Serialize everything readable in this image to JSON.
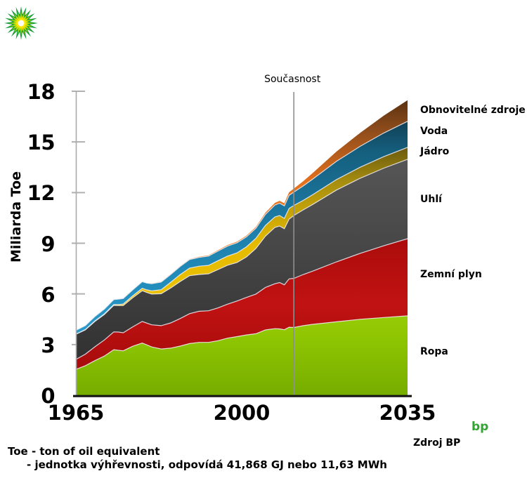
{
  "axis": {
    "y_title": "Miliarda Toe"
  },
  "present": {
    "label": "Současnost",
    "year": 2011
  },
  "footer": {
    "note_line1": "Toe - ton of oil equivalent",
    "note_line2": "- jednotka výhřevnosti, odpovídá 41,868 GJ nebo 11,63 MWh",
    "source_label": "Zdroj BP",
    "bp_wordmark": "bp"
  },
  "chart_data": {
    "type": "area",
    "stacked": true,
    "title": "",
    "xlabel": "",
    "ylabel": "Miliarda Toe",
    "xlim": [
      1965,
      2035
    ],
    "ylim": [
      0,
      18
    ],
    "yticks": [
      0,
      3,
      6,
      9,
      12,
      15,
      18
    ],
    "xticks": [
      1965,
      2000,
      2035
    ],
    "grid": false,
    "legend_position": "right-outside",
    "present_line": {
      "year": 2011,
      "label": "Současnost",
      "color": "#8f8f8f"
    },
    "axis_colors": {
      "y_axis": "#ababab",
      "tick": "#b0b0b0",
      "x_axis": "#151515"
    },
    "separator_color": "rgba(240,238,248,0.85)",
    "x": [
      1965,
      1967,
      1969,
      1971,
      1973,
      1974,
      1975,
      1977,
      1979,
      1980,
      1981,
      1983,
      1985,
      1987,
      1989,
      1991,
      1993,
      1995,
      1997,
      1999,
      2001,
      2003,
      2005,
      2007,
      2008,
      2009,
      2010,
      2011,
      2013,
      2015,
      2020,
      2025,
      2030,
      2035
    ],
    "series": [
      {
        "name": "Ropa",
        "values": [
          1.53,
          1.75,
          2.05,
          2.32,
          2.7,
          2.66,
          2.63,
          2.9,
          3.09,
          2.98,
          2.86,
          2.74,
          2.79,
          2.91,
          3.06,
          3.13,
          3.13,
          3.23,
          3.38,
          3.47,
          3.57,
          3.64,
          3.87,
          3.94,
          3.93,
          3.88,
          4.03,
          4.01,
          4.12,
          4.2,
          4.35,
          4.5,
          4.6,
          4.7
        ],
        "gradient": [
          [
            0.55,
            "#aada12"
          ],
          [
            0.8,
            "#90c702"
          ],
          [
            1,
            "#76ad00"
          ]
        ]
      },
      {
        "name": "Zemní plyn",
        "values": [
          0.59,
          0.68,
          0.82,
          0.95,
          1.05,
          1.08,
          1.07,
          1.15,
          1.28,
          1.29,
          1.31,
          1.38,
          1.49,
          1.63,
          1.77,
          1.84,
          1.87,
          1.94,
          2.01,
          2.11,
          2.22,
          2.35,
          2.51,
          2.66,
          2.74,
          2.66,
          2.86,
          2.91,
          3.03,
          3.15,
          3.55,
          3.9,
          4.25,
          4.57
        ],
        "gradient": [
          [
            0.45,
            "#a80b0b"
          ],
          [
            0.7,
            "#c11212"
          ],
          [
            1,
            "#9c0909"
          ]
        ]
      },
      {
        "name": "Uhlí",
        "values": [
          1.49,
          1.44,
          1.5,
          1.51,
          1.57,
          1.57,
          1.61,
          1.72,
          1.82,
          1.81,
          1.82,
          1.89,
          2.07,
          2.19,
          2.25,
          2.18,
          2.19,
          2.27,
          2.31,
          2.28,
          2.4,
          2.7,
          3.04,
          3.34,
          3.35,
          3.32,
          3.54,
          3.72,
          3.83,
          3.95,
          4.25,
          4.45,
          4.6,
          4.7
        ],
        "gradient": [
          [
            0.18,
            "#585858"
          ],
          [
            0.55,
            "#454545"
          ],
          [
            0.95,
            "#2d2d2d"
          ]
        ]
      },
      {
        "name": "Jádro",
        "values": [
          0.01,
          0.02,
          0.03,
          0.04,
          0.05,
          0.06,
          0.09,
          0.12,
          0.14,
          0.16,
          0.19,
          0.24,
          0.34,
          0.41,
          0.45,
          0.49,
          0.5,
          0.53,
          0.54,
          0.57,
          0.6,
          0.6,
          0.63,
          0.62,
          0.62,
          0.61,
          0.63,
          0.6,
          0.56,
          0.58,
          0.62,
          0.65,
          0.68,
          0.71
        ],
        "gradient": [
          [
            0.14,
            "#54470e"
          ],
          [
            0.3,
            "#a78e10"
          ],
          [
            0.5,
            "#e5ba00"
          ],
          [
            0.9,
            "#f2ca00"
          ]
        ]
      },
      {
        "name": "Voda",
        "values": [
          0.22,
          0.24,
          0.26,
          0.28,
          0.29,
          0.32,
          0.33,
          0.35,
          0.39,
          0.4,
          0.42,
          0.45,
          0.46,
          0.48,
          0.5,
          0.52,
          0.55,
          0.57,
          0.59,
          0.6,
          0.59,
          0.6,
          0.66,
          0.7,
          0.73,
          0.74,
          0.78,
          0.79,
          0.86,
          0.92,
          1.08,
          1.24,
          1.4,
          1.54
        ],
        "gradient": [
          [
            0.07,
            "#11384b"
          ],
          [
            0.2,
            "#155f7e"
          ],
          [
            0.45,
            "#1d7ea9"
          ],
          [
            0.9,
            "#2ba3d4"
          ]
        ]
      },
      {
        "name": "Obnovitelné zdroje",
        "values": [
          0.0,
          0.0,
          0.0,
          0.0,
          0.01,
          0.01,
          0.01,
          0.01,
          0.01,
          0.01,
          0.02,
          0.02,
          0.02,
          0.03,
          0.03,
          0.04,
          0.04,
          0.05,
          0.06,
          0.06,
          0.07,
          0.08,
          0.1,
          0.13,
          0.14,
          0.16,
          0.18,
          0.21,
          0.28,
          0.36,
          0.58,
          0.8,
          1.03,
          1.25
        ],
        "gradient": [
          [
            0.02,
            "#57300f"
          ],
          [
            0.12,
            "#8a4a1b"
          ],
          [
            0.3,
            "#e4711c"
          ],
          [
            0.65,
            "#f7851f"
          ]
        ]
      }
    ],
    "legend_order_top_to_bottom": [
      "Obnovitelné zdroje",
      "Voda",
      "Jádro",
      "Uhlí",
      "Zemní plyn",
      "Ropa"
    ],
    "bp_logo_colors": {
      "outer": "#129c39",
      "mid": "#93ce0a",
      "inner": "#ffe600",
      "center": "#fffef2",
      "wordmark": "#33a532"
    }
  }
}
